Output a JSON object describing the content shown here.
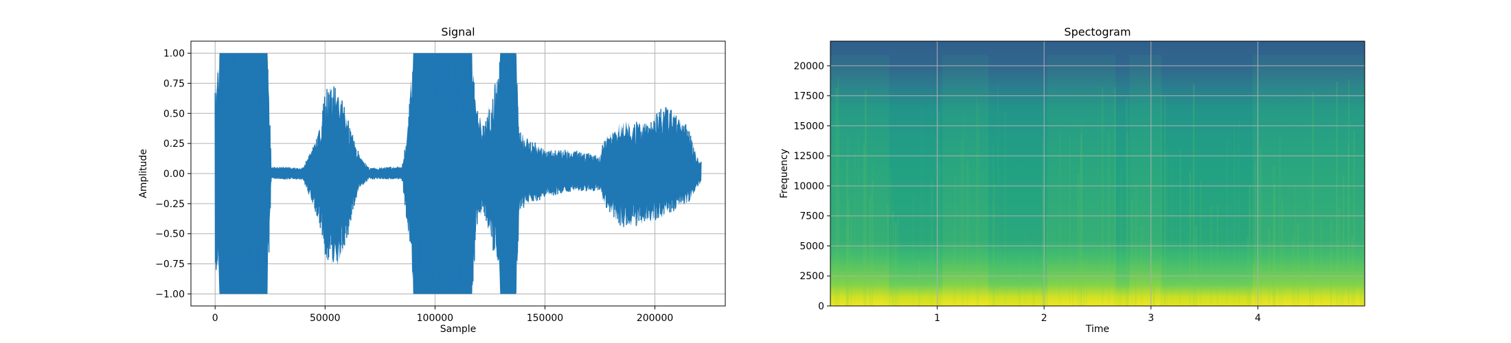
{
  "chart_data": [
    {
      "type": "line",
      "title": "Signal",
      "xlabel": "Sample",
      "ylabel": "Amplitude",
      "xlim": [
        -11000,
        232000
      ],
      "ylim": [
        -1.1,
        1.1
      ],
      "xticks": [
        0,
        50000,
        100000,
        150000,
        200000
      ],
      "xtick_labels": [
        "0",
        "50000",
        "100000",
        "150000",
        "200000"
      ],
      "yticks": [
        -1.0,
        -0.75,
        -0.5,
        -0.25,
        0.0,
        0.25,
        0.5,
        0.75,
        1.0
      ],
      "ytick_labels": [
        "−1.00",
        "−0.75",
        "−0.50",
        "−0.25",
        "0.00",
        "0.25",
        "0.50",
        "0.75",
        "1.00"
      ],
      "grid": true,
      "color": "#1f77b4",
      "envelope": {
        "x": [
          0,
          2000,
          24000,
          25500,
          40000,
          47000,
          50000,
          54000,
          58000,
          63000,
          66000,
          70000,
          85000,
          88000,
          90000,
          117000,
          119000,
          122000,
          128000,
          129500,
          137000,
          138500,
          150000,
          162000,
          175000,
          177000,
          185000,
          195000,
          205000,
          215000,
          220000,
          221000
        ],
        "upper": [
          0.82,
          1.0,
          1.0,
          0.06,
          0.05,
          0.35,
          0.7,
          0.75,
          0.6,
          0.3,
          0.14,
          0.05,
          0.06,
          0.5,
          1.0,
          1.0,
          0.55,
          0.4,
          0.8,
          1.0,
          1.0,
          0.35,
          0.2,
          0.2,
          0.15,
          0.3,
          0.45,
          0.42,
          0.58,
          0.4,
          0.1,
          0.1
        ],
        "lower": [
          -0.8,
          -1.0,
          -1.0,
          -0.05,
          -0.05,
          -0.4,
          -0.7,
          -0.8,
          -0.72,
          -0.3,
          -0.12,
          -0.05,
          -0.05,
          -0.55,
          -1.0,
          -1.0,
          -0.45,
          -0.3,
          -0.8,
          -1.0,
          -1.0,
          -0.3,
          -0.2,
          -0.15,
          -0.15,
          -0.28,
          -0.45,
          -0.45,
          -0.35,
          -0.25,
          -0.1,
          -0.08
        ]
      }
    },
    {
      "type": "heatmap",
      "title": "Spectogram",
      "xlabel": "Time",
      "ylabel": "Frequency",
      "xlim": [
        0.0,
        5.0
      ],
      "ylim": [
        0,
        22050
      ],
      "xticks": [
        1,
        2,
        3,
        4
      ],
      "xtick_labels": [
        "1",
        "2",
        "3",
        "4"
      ],
      "yticks": [
        0,
        2500,
        5000,
        7500,
        10000,
        12500,
        15000,
        17500,
        20000
      ],
      "ytick_labels": [
        "0",
        "2500",
        "5000",
        "7500",
        "10000",
        "12500",
        "15000",
        "17500",
        "20000"
      ],
      "grid": true,
      "colormap": "viridis",
      "speech_segments": [
        [
          0.0,
          0.55
        ],
        [
          1.05,
          1.48
        ],
        [
          2.03,
          2.67
        ],
        [
          2.8,
          3.1
        ],
        [
          3.95,
          5.0
        ]
      ]
    }
  ]
}
